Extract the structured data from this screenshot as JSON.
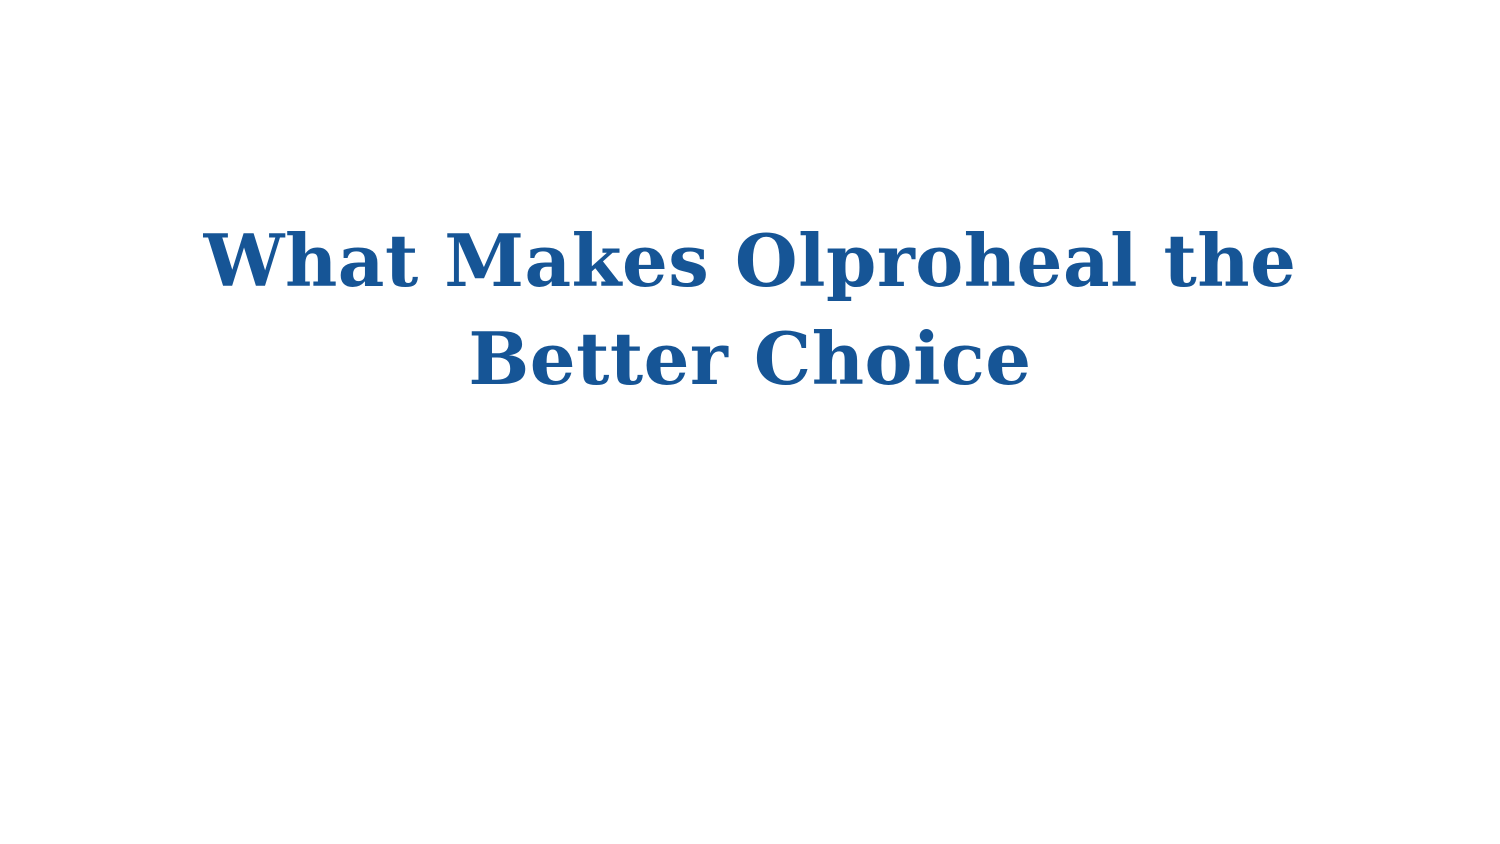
{
  "slide": {
    "title_lines": [
      "What Makes Olproheal the",
      "Better Choice"
    ],
    "title_color": "#165596",
    "background_color": "#ffffff"
  }
}
